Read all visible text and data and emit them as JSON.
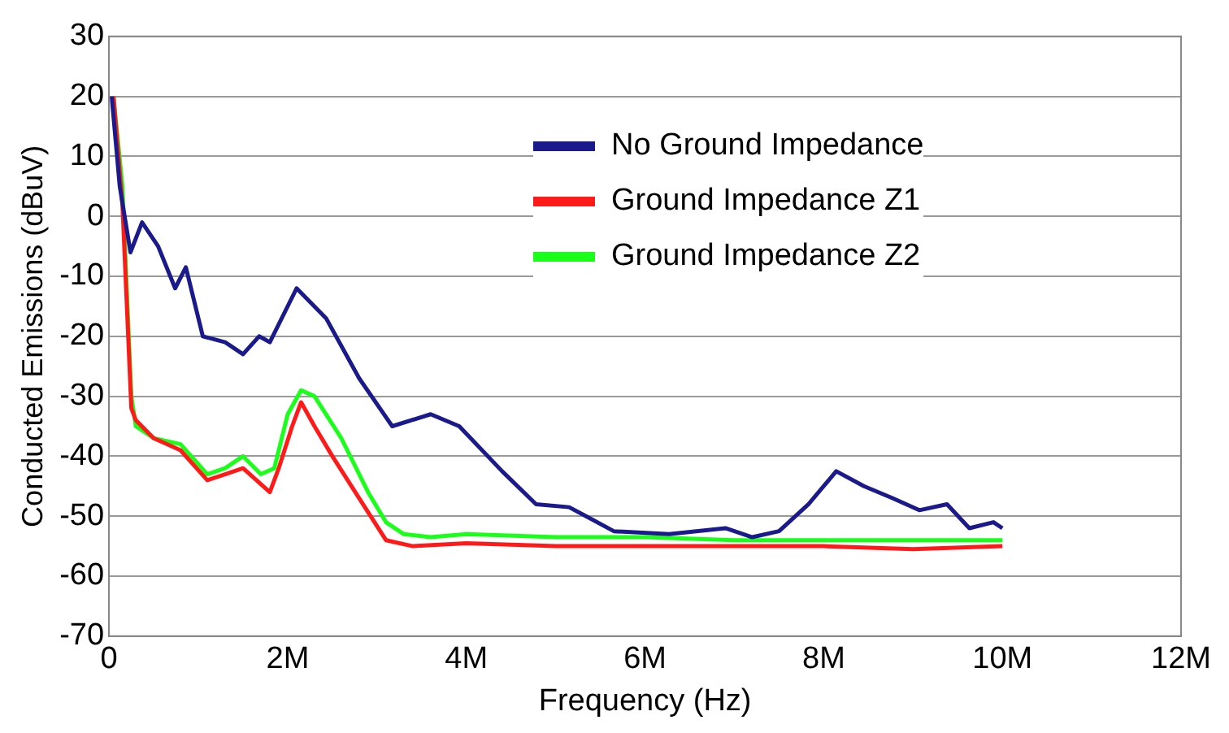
{
  "chart_data": {
    "type": "line",
    "xlabel": "Frequency (Hz)",
    "ylabel": "Conducted Emissions (dBuV)",
    "xlim": [
      0,
      12000000
    ],
    "xticks": [
      0,
      {
        "value": 2000000,
        "label": "2M"
      },
      {
        "value": 4000000,
        "label": "4M"
      },
      {
        "value": 6000000,
        "label": "6M"
      },
      {
        "value": 8000000,
        "label": "8M"
      },
      {
        "value": 10000000,
        "label": "10M"
      },
      {
        "value": 12000000,
        "label": "12M"
      }
    ],
    "ylim": [
      -70,
      30
    ],
    "yticks": [
      -70,
      -60,
      -50,
      -40,
      -30,
      -20,
      -10,
      0,
      10,
      20,
      30
    ],
    "grid": "y",
    "legend": "top right",
    "marker": "none",
    "line_style": "solid",
    "series": [
      {
        "name": "No Ground Impedance",
        "color": "#1a1a8c",
        "x": [
          30000,
          120000,
          240000,
          370000,
          550000,
          740000,
          860000,
          1050000,
          1300000,
          1500000,
          1680000,
          1800000,
          2100000,
          2430000,
          2800000,
          3170000,
          3600000,
          3920000,
          4400000,
          4780000,
          5150000,
          5340000,
          5650000,
          6270000,
          6900000,
          7200000,
          7500000,
          7830000,
          8140000,
          8450000,
          8770000,
          9070000,
          9380000,
          9630000,
          9900000,
          10000000
        ],
        "values": [
          20,
          5,
          -6,
          -1,
          -5,
          -12,
          -8.5,
          -20,
          -21,
          -23,
          -20,
          -21,
          -12,
          -17,
          -27,
          -35,
          -33,
          -35,
          -42.5,
          -48,
          -48.5,
          -50,
          -52.5,
          -53,
          -52,
          -53.5,
          -52.5,
          -48,
          -42.5,
          -45,
          -47,
          -49,
          -48,
          -52,
          -51,
          -52
        ]
      },
      {
        "name": "Ground Impedance Z1",
        "color": "#ff1a1a",
        "x": [
          50000,
          150000,
          250000,
          300000,
          500000,
          800000,
          1100000,
          1300000,
          1500000,
          1800000,
          1900000,
          2050000,
          2150000,
          2300000,
          2500000,
          2800000,
          3100000,
          3400000,
          4000000,
          5000000,
          6000000,
          7000000,
          8000000,
          9000000,
          10000000
        ],
        "values": [
          20,
          2,
          -32,
          -34,
          -37,
          -39,
          -44,
          -43,
          -42,
          -46,
          -42,
          -35,
          -31,
          -35,
          -40,
          -47,
          -54,
          -55,
          -54.5,
          -55,
          -55,
          -55,
          -55,
          -55.5,
          -55
        ]
      },
      {
        "name": "Ground Impedance Z2",
        "color": "#1aff1a",
        "x": [
          50000,
          150000,
          250000,
          300000,
          500000,
          800000,
          1100000,
          1300000,
          1500000,
          1700000,
          1850000,
          2000000,
          2150000,
          2300000,
          2600000,
          2900000,
          3100000,
          3300000,
          3600000,
          4000000,
          5000000,
          6000000,
          7000000,
          8000000,
          9000000,
          10000000
        ],
        "values": [
          20,
          5,
          -30,
          -35,
          -37,
          -38,
          -43,
          -42,
          -40,
          -43,
          -42,
          -33,
          -29,
          -30,
          -37,
          -46,
          -51,
          -53,
          -53.5,
          -53,
          -53.5,
          -53.5,
          -54,
          -54,
          -54,
          -54
        ]
      }
    ]
  }
}
